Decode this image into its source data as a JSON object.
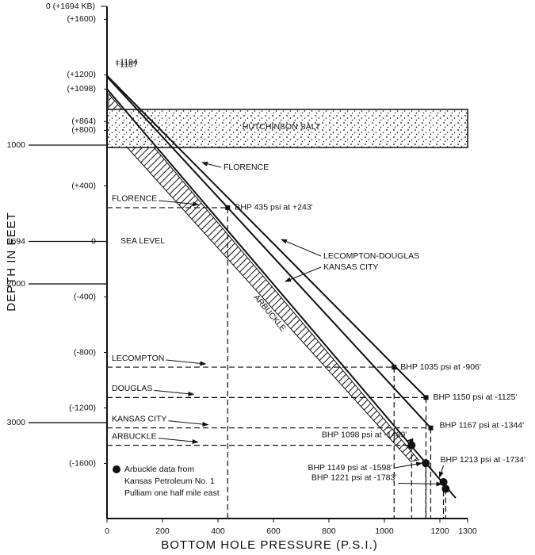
{
  "chart_data": {
    "type": "line",
    "x_label": "BOTTOM HOLE PRESSURE (P.S.I.)",
    "y_label": "DEPTH IN FEET",
    "xlim": [
      0,
      1300
    ],
    "xticks": [
      0,
      200,
      400,
      600,
      800,
      1000,
      1200,
      1300
    ],
    "ylim": [
      1694,
      -1997
    ],
    "yticks": [
      {
        "value": 1600,
        "label": "(+1600)"
      },
      {
        "value": 1200,
        "label": "(+1200)"
      },
      {
        "value": 1098,
        "label": "(+1098)"
      },
      {
        "value": 864,
        "label": "(+864)"
      },
      {
        "value": 800,
        "label": "(+800)"
      },
      {
        "value": 400,
        "label": "(+400)"
      },
      0,
      {
        "value": -400,
        "label": "(-400)"
      },
      {
        "value": -800,
        "label": "(-800)"
      },
      {
        "value": -1200,
        "label": "(-1200)"
      },
      {
        "value": -1600,
        "label": "(-1600)"
      }
    ],
    "y2lim": [
      0,
      3691
    ],
    "y2ticks": [
      {
        "value": 0,
        "label": "0 (+1694 KB)"
      },
      1000,
      1694,
      2000,
      3000
    ],
    "color": "#111111",
    "salt": {
      "label": "HUTCHINSON SALT",
      "top": 951,
      "bottom": 677
    },
    "series": [
      {
        "x": [
          0,
          1150
        ],
        "values": [
          1194,
          -1125
        ],
        "value_labels": [
          "+1194",
          null
        ]
      },
      {
        "x": [
          0,
          1167
        ],
        "values": [
          1187,
          -1344
        ],
        "value_labels": [
          "+1187",
          null
        ]
      },
      {
        "x": [
          0,
          1257
        ],
        "values": [
          1098,
          -1849
        ],
        "value_labels": [
          null,
          null
        ]
      }
    ],
    "points": {
      "x": [
        435,
        1035,
        1150,
        1167,
        1098,
        1149,
        1213,
        1221
      ],
      "values": [
        243,
        -906,
        -1125,
        -1344,
        -1469,
        -1598,
        -1734,
        -1783
      ],
      "value_labels": [
        "BHP 435 psi at +243'",
        "BHP 1035 psi at -906'",
        "BHP 1150 psi at -1125'",
        "BHP 1167 psi at -1344'",
        "BHP 1098 psi at -1469'",
        "BHP 1149 psi at -1598'",
        "BHP 1213 psi at -1734'",
        "BHP 1221 psi at -1783'"
      ],
      "markers": [
        "square",
        "square",
        "square",
        "square",
        "circle",
        "circle",
        "circle",
        "circle"
      ]
    },
    "level_labels": [
      "FLORENCE",
      "LECOMPTON",
      "DOUGLAS",
      "KANSAS CITY",
      "ARBUCKLE"
    ],
    "annotations": [
      "FLORENCE",
      "LECOMPTON-DOUGLAS",
      "KANSAS CITY",
      "ARBUCKLE",
      "SEA LEVEL"
    ],
    "note": [
      "Arbuckle data from",
      "Kansas Petroleum No. 1",
      "Pulliam one half mile east"
    ]
  }
}
